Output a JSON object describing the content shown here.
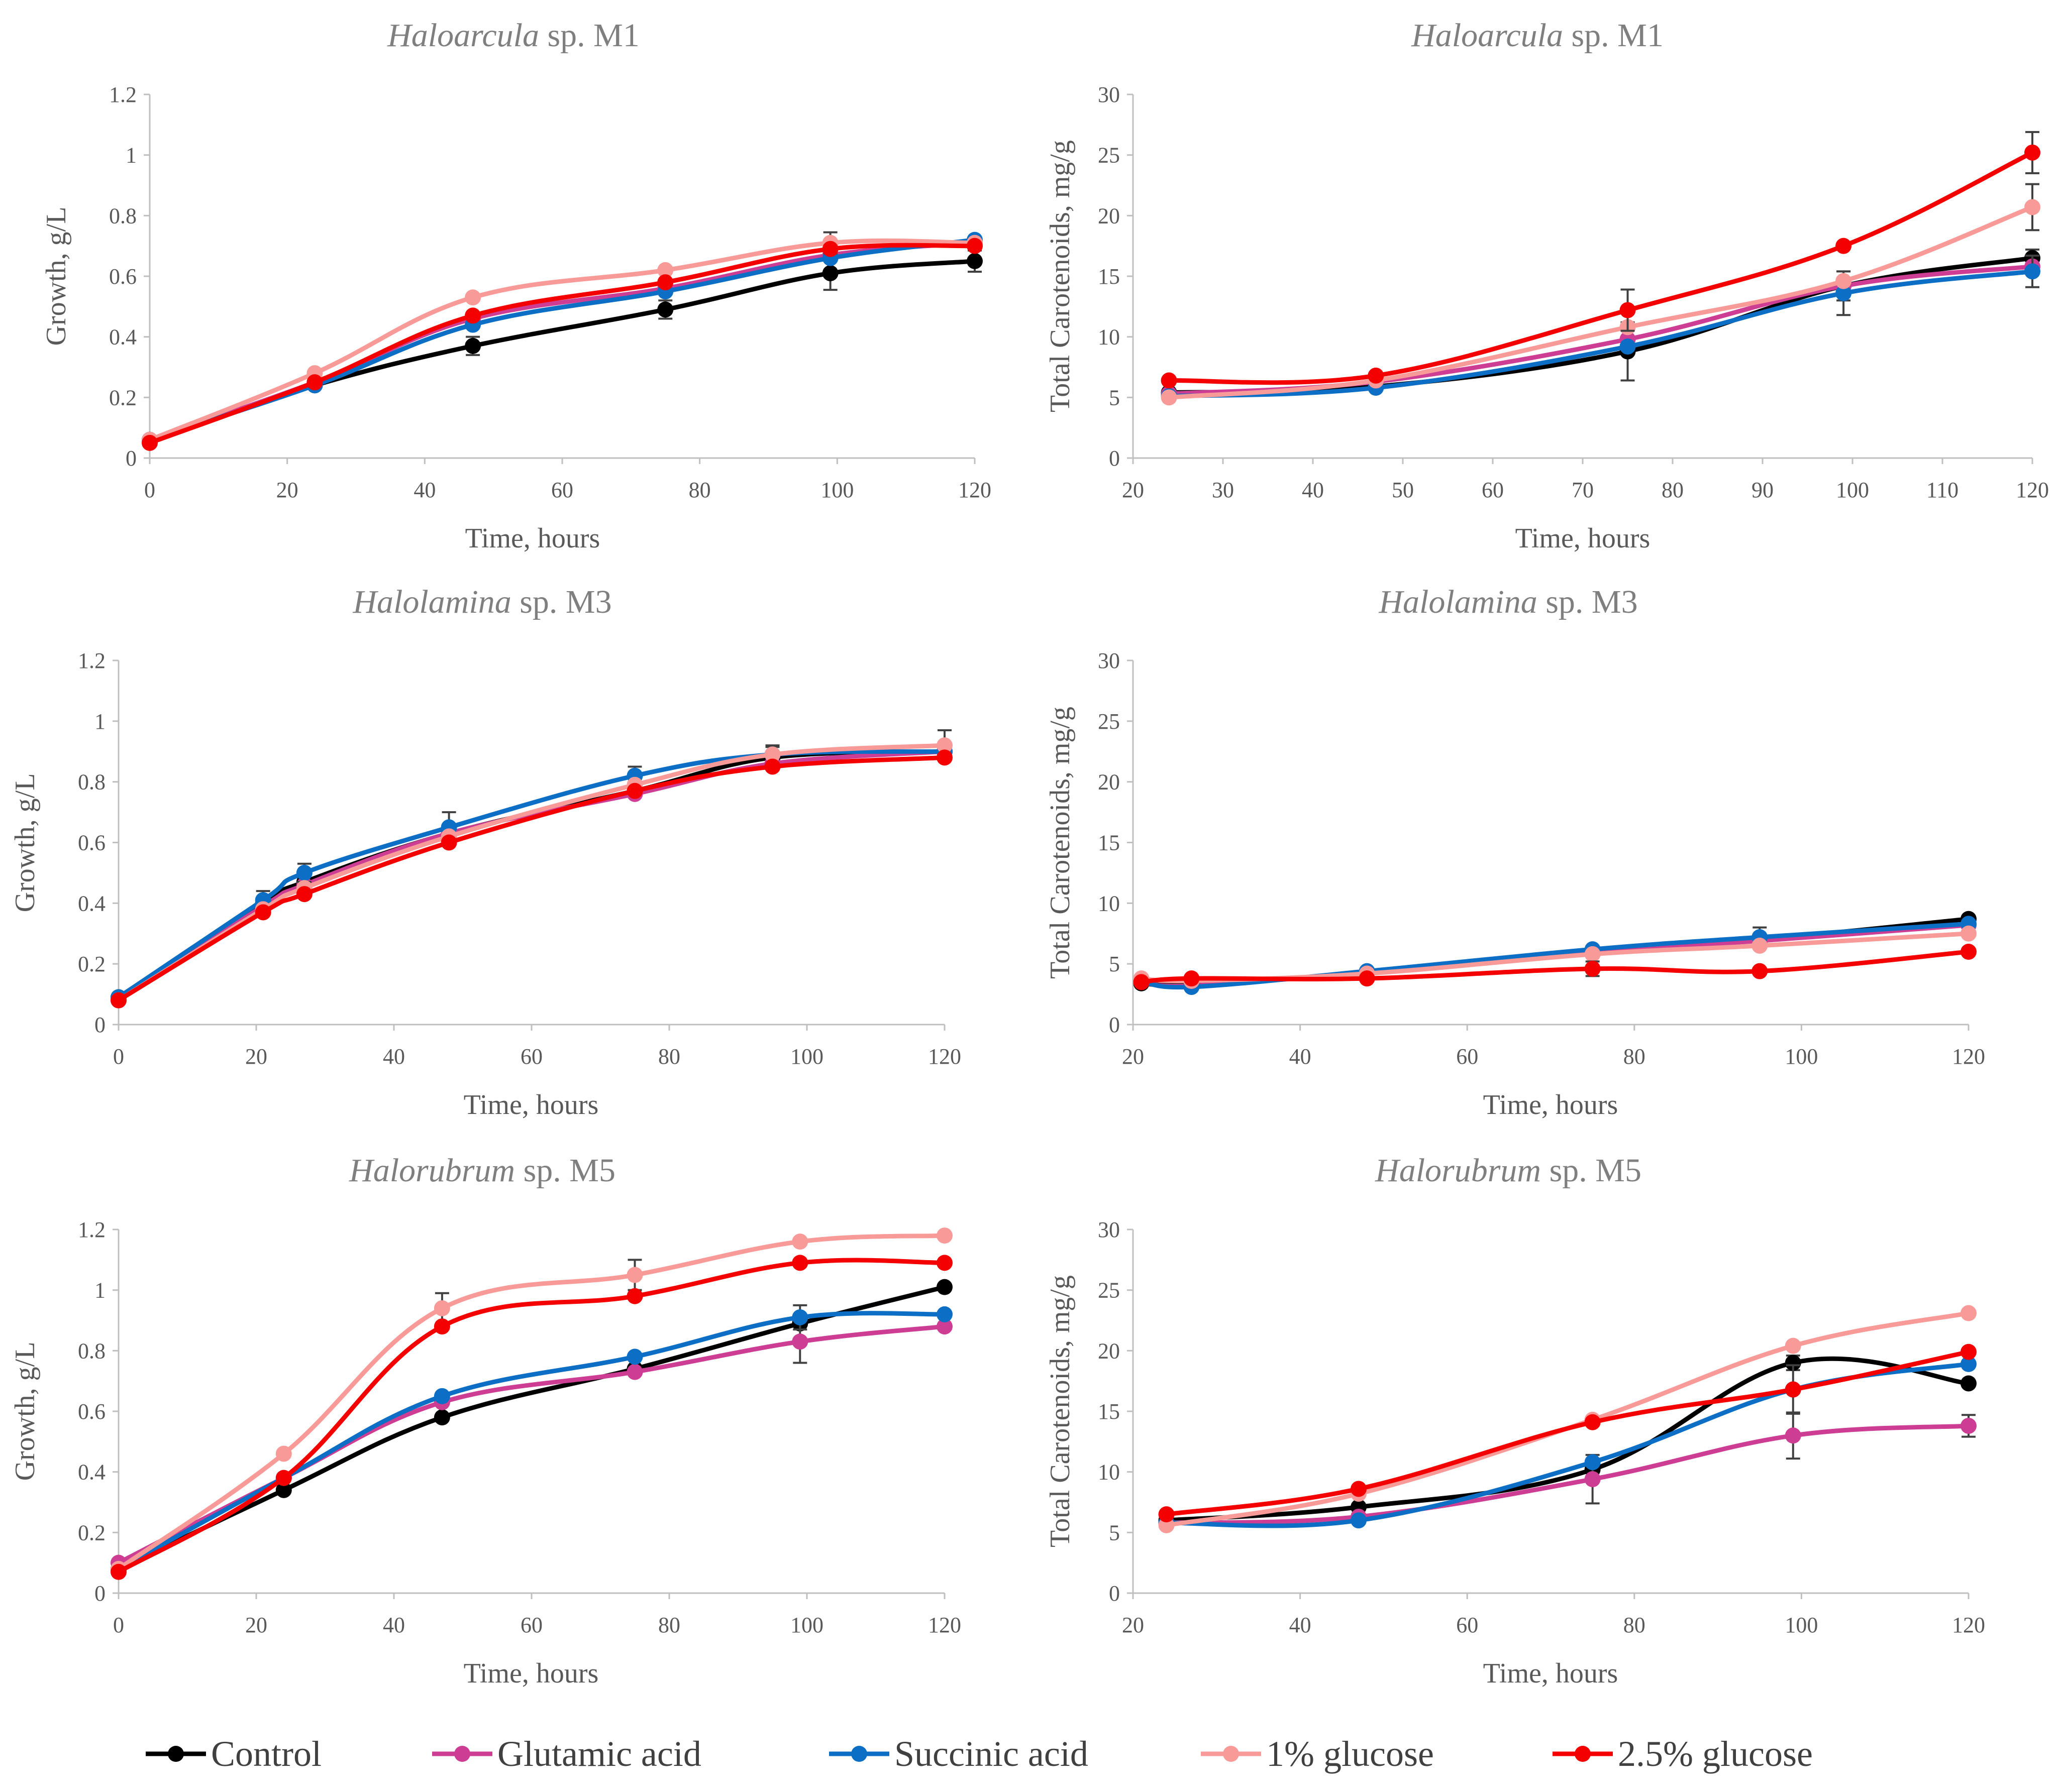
{
  "series_meta": [
    {
      "key": "control",
      "name": "Control",
      "color": "#000000"
    },
    {
      "key": "glutamic",
      "name": "Glutamic acid",
      "color": "#cc3d93"
    },
    {
      "key": "succinic",
      "name": "Succinic acid",
      "color": "#0c6ec4"
    },
    {
      "key": "glucose1",
      "name": "1% glucose",
      "color": "#f79a98"
    },
    {
      "key": "glucose25",
      "name": "2.5% glucose",
      "color": "#f40000"
    }
  ],
  "legend": {
    "items": [
      "Control",
      "Glutamic acid",
      "Succinic acid",
      "1% glucose",
      "2.5% glucose"
    ]
  },
  "chart_data": [
    {
      "id": "m1-growth",
      "type": "line",
      "title": {
        "italic": "Haloarcula",
        "rest": " sp. M1"
      },
      "xlabel": "Time, hours",
      "ylabel": "Growth, g/L",
      "xlim": [
        0,
        120
      ],
      "ylim": [
        0,
        1.2
      ],
      "xticks": [
        0,
        20,
        40,
        60,
        80,
        100,
        120
      ],
      "yticks": [
        0,
        0.2,
        0.4,
        0.6,
        0.8,
        1,
        1.2
      ],
      "ytick_labels": [
        "0",
        "0.2",
        "0.4",
        "0.6",
        "0.8",
        "1",
        "1.2"
      ],
      "series": [
        {
          "name": "Control",
          "x": [
            0,
            24,
            47,
            75,
            99,
            120
          ],
          "y": [
            0.06,
            0.24,
            0.37,
            0.49,
            0.61,
            0.65
          ],
          "err": [
            0,
            0,
            0.03,
            0.03,
            0.055,
            0.035
          ]
        },
        {
          "name": "Glutamic acid",
          "x": [
            0,
            24,
            47,
            75,
            99,
            120
          ],
          "y": [
            0.06,
            0.25,
            0.46,
            0.56,
            0.67,
            0.71
          ],
          "err": [
            0,
            0,
            0,
            0,
            0,
            0
          ]
        },
        {
          "name": "Succinic acid",
          "x": [
            0,
            24,
            47,
            75,
            99,
            120
          ],
          "y": [
            0.06,
            0.24,
            0.44,
            0.55,
            0.66,
            0.72
          ],
          "err": [
            0,
            0,
            0,
            0,
            0,
            0
          ]
        },
        {
          "name": "1% glucose",
          "x": [
            0,
            24,
            47,
            75,
            99,
            120
          ],
          "y": [
            0.06,
            0.28,
            0.53,
            0.62,
            0.71,
            0.71
          ],
          "err": [
            0,
            0,
            0,
            0,
            0.035,
            0
          ]
        },
        {
          "name": "2.5% glucose",
          "x": [
            0,
            24,
            47,
            75,
            99,
            120
          ],
          "y": [
            0.05,
            0.25,
            0.47,
            0.58,
            0.69,
            0.7
          ],
          "err": [
            0,
            0,
            0,
            0,
            0,
            0
          ]
        }
      ]
    },
    {
      "id": "m1-carot",
      "type": "line",
      "title": {
        "italic": "Haloarcula",
        "rest": " sp. M1"
      },
      "xlabel": "Time, hours",
      "ylabel": "Total Carotenoids, mg/g",
      "xlim": [
        20,
        120
      ],
      "ylim": [
        0,
        30
      ],
      "xticks": [
        20,
        30,
        40,
        50,
        60,
        70,
        80,
        90,
        100,
        110,
        120
      ],
      "yticks": [
        0,
        5,
        10,
        15,
        20,
        25,
        30
      ],
      "ytick_labels": [
        "0",
        "5",
        "10",
        "15",
        "20",
        "25",
        "30"
      ],
      "series": [
        {
          "name": "Control",
          "x": [
            24,
            47,
            75,
            99,
            120
          ],
          "y": [
            5.4,
            5.9,
            8.8,
            14.2,
            16.5
          ],
          "err": [
            0,
            0,
            2.4,
            1.2,
            0.7
          ]
        },
        {
          "name": "Glutamic acid",
          "x": [
            24,
            47,
            75,
            99,
            120
          ],
          "y": [
            5.3,
            6.3,
            9.8,
            14.2,
            15.8
          ],
          "err": [
            0,
            0,
            0,
            0,
            0
          ]
        },
        {
          "name": "Succinic acid",
          "x": [
            24,
            47,
            75,
            99,
            120
          ],
          "y": [
            5.1,
            5.8,
            9.2,
            13.6,
            15.4
          ],
          "err": [
            0,
            0,
            0,
            1.8,
            1.3
          ]
        },
        {
          "name": "1% glucose",
          "x": [
            24,
            47,
            75,
            99,
            120
          ],
          "y": [
            5.0,
            6.4,
            10.8,
            14.6,
            20.7
          ],
          "err": [
            0,
            0,
            0,
            0,
            1.9
          ]
        },
        {
          "name": "2.5% glucose",
          "x": [
            24,
            47,
            75,
            99,
            120
          ],
          "y": [
            6.4,
            6.8,
            12.2,
            17.5,
            25.2
          ],
          "err": [
            0,
            0,
            1.7,
            0,
            1.7
          ]
        }
      ]
    },
    {
      "id": "m3-growth",
      "type": "line",
      "title": {
        "italic": "Halolamina",
        "rest": " sp. M3"
      },
      "xlabel": "Time, hours",
      "ylabel": "Growth, g/L",
      "xlim": [
        0,
        120
      ],
      "ylim": [
        0,
        1.2
      ],
      "xticks": [
        0,
        20,
        40,
        60,
        80,
        100,
        120
      ],
      "yticks": [
        0,
        0.2,
        0.4,
        0.6,
        0.8,
        1,
        1.2
      ],
      "ytick_labels": [
        "0",
        "0.2",
        "0.4",
        "0.6",
        "0.8",
        "1",
        "1.2"
      ],
      "series": [
        {
          "name": "Control",
          "x": [
            0,
            21,
            27,
            48,
            75,
            95,
            120
          ],
          "y": [
            0.09,
            0.4,
            0.47,
            0.63,
            0.77,
            0.88,
            0.9
          ],
          "err": [
            0,
            0,
            0,
            0,
            0,
            0.035,
            0
          ]
        },
        {
          "name": "Glutamic acid",
          "x": [
            0,
            21,
            27,
            48,
            75,
            95,
            120
          ],
          "y": [
            0.08,
            0.39,
            0.46,
            0.63,
            0.76,
            0.86,
            0.9
          ],
          "err": [
            0,
            0,
            0,
            0,
            0,
            0,
            0
          ]
        },
        {
          "name": "Succinic acid",
          "x": [
            0,
            21,
            27,
            48,
            75,
            95,
            120
          ],
          "y": [
            0.09,
            0.41,
            0.5,
            0.65,
            0.82,
            0.89,
            0.9
          ],
          "err": [
            0,
            0.03,
            0.03,
            0.05,
            0.03,
            0.03,
            0
          ]
        },
        {
          "name": "1% glucose",
          "x": [
            0,
            21,
            27,
            48,
            75,
            95,
            120
          ],
          "y": [
            0.08,
            0.38,
            0.45,
            0.62,
            0.79,
            0.89,
            0.92
          ],
          "err": [
            0,
            0,
            0,
            0,
            0,
            0,
            0.05
          ]
        },
        {
          "name": "2.5% glucose",
          "x": [
            0,
            21,
            27,
            48,
            75,
            95,
            120
          ],
          "y": [
            0.08,
            0.37,
            0.43,
            0.6,
            0.77,
            0.85,
            0.88
          ],
          "err": [
            0,
            0,
            0,
            0,
            0,
            0,
            0
          ]
        }
      ]
    },
    {
      "id": "m3-carot",
      "type": "line",
      "title": {
        "italic": "Halolamina",
        "rest": " sp. M3"
      },
      "xlabel": "Time, hours",
      "ylabel": "Total Carotenoids, mg/g",
      "xlim": [
        20,
        120
      ],
      "ylim": [
        0,
        30
      ],
      "xticks": [
        20,
        40,
        60,
        80,
        100,
        120
      ],
      "yticks": [
        0,
        5,
        10,
        15,
        20,
        25,
        30
      ],
      "ytick_labels": [
        "0",
        "5",
        "10",
        "15",
        "20",
        "25",
        "30"
      ],
      "series": [
        {
          "name": "Control",
          "x": [
            21,
            27,
            48,
            75,
            95,
            120
          ],
          "y": [
            3.4,
            3.3,
            4.3,
            6.1,
            7.0,
            8.7
          ],
          "err": [
            0,
            0,
            0,
            0,
            0,
            0
          ]
        },
        {
          "name": "Glutamic acid",
          "x": [
            21,
            27,
            48,
            75,
            95,
            120
          ],
          "y": [
            3.5,
            3.2,
            4.3,
            6.0,
            6.9,
            8.2
          ],
          "err": [
            0,
            0,
            0,
            0,
            0,
            0
          ]
        },
        {
          "name": "Succinic acid",
          "x": [
            21,
            27,
            48,
            75,
            95,
            120
          ],
          "y": [
            3.6,
            3.1,
            4.4,
            6.2,
            7.2,
            8.3
          ],
          "err": [
            0,
            0,
            0,
            0,
            0.8,
            0
          ]
        },
        {
          "name": "1% glucose",
          "x": [
            21,
            27,
            48,
            75,
            95,
            120
          ],
          "y": [
            3.8,
            3.6,
            4.2,
            5.8,
            6.5,
            7.5
          ],
          "err": [
            0,
            0,
            0,
            0,
            0,
            0
          ]
        },
        {
          "name": "2.5% glucose",
          "x": [
            21,
            27,
            48,
            75,
            95,
            120
          ],
          "y": [
            3.5,
            3.8,
            3.8,
            4.6,
            4.4,
            6.0
          ],
          "err": [
            0,
            0,
            0,
            0.6,
            0,
            0
          ]
        }
      ]
    },
    {
      "id": "m5-growth",
      "type": "line",
      "title": {
        "italic": "Halorubrum",
        "rest": " sp. M5"
      },
      "xlabel": "Time, hours",
      "ylabel": "Growth, g/L",
      "xlim": [
        0,
        120
      ],
      "ylim": [
        0,
        1.2
      ],
      "xticks": [
        0,
        20,
        40,
        60,
        80,
        100,
        120
      ],
      "yticks": [
        0,
        0.2,
        0.4,
        0.6,
        0.8,
        1,
        1.2
      ],
      "ytick_labels": [
        "0",
        "0.2",
        "0.4",
        "0.6",
        "0.8",
        "1",
        "1.2"
      ],
      "series": [
        {
          "name": "Control",
          "x": [
            0,
            24,
            47,
            75,
            99,
            120
          ],
          "y": [
            0.08,
            0.34,
            0.58,
            0.74,
            0.89,
            1.01
          ],
          "err": [
            0,
            0,
            0,
            0,
            0,
            0
          ]
        },
        {
          "name": "Glutamic acid",
          "x": [
            0,
            24,
            47,
            75,
            99,
            120
          ],
          "y": [
            0.1,
            0.38,
            0.63,
            0.73,
            0.83,
            0.88
          ],
          "err": [
            0,
            0,
            0,
            0,
            0.07,
            0
          ]
        },
        {
          "name": "Succinic acid",
          "x": [
            0,
            24,
            47,
            75,
            99,
            120
          ],
          "y": [
            0.08,
            0.38,
            0.65,
            0.78,
            0.91,
            0.92
          ],
          "err": [
            0,
            0,
            0,
            0,
            0.04,
            0
          ]
        },
        {
          "name": "1% glucose",
          "x": [
            0,
            24,
            47,
            75,
            99,
            120
          ],
          "y": [
            0.08,
            0.46,
            0.94,
            1.05,
            1.16,
            1.18
          ],
          "err": [
            0,
            0,
            0.05,
            0.05,
            0,
            0
          ]
        },
        {
          "name": "2.5% glucose",
          "x": [
            0,
            24,
            47,
            75,
            99,
            120
          ],
          "y": [
            0.07,
            0.38,
            0.88,
            0.98,
            1.09,
            1.09
          ],
          "err": [
            0,
            0,
            0,
            0,
            0,
            0
          ]
        }
      ]
    },
    {
      "id": "m5-carot",
      "type": "line",
      "title": {
        "italic": "Halorubrum",
        "rest": " sp. M5"
      },
      "xlabel": "Time, hours",
      "ylabel": "Total Carotenoids, mg/g",
      "xlim": [
        20,
        120
      ],
      "ylim": [
        0,
        30
      ],
      "xticks": [
        20,
        40,
        60,
        80,
        100,
        120
      ],
      "yticks": [
        0,
        5,
        10,
        15,
        20,
        25,
        30
      ],
      "ytick_labels": [
        "0",
        "5",
        "10",
        "15",
        "20",
        "25",
        "30"
      ],
      "series": [
        {
          "name": "Control",
          "x": [
            24,
            47,
            75,
            99,
            120
          ],
          "y": [
            6.0,
            7.1,
            10.2,
            19.0,
            17.3
          ],
          "err": [
            0,
            0,
            0,
            0.6,
            0
          ]
        },
        {
          "name": "Glutamic acid",
          "x": [
            24,
            47,
            75,
            99,
            120
          ],
          "y": [
            5.8,
            6.3,
            9.4,
            13.0,
            13.8
          ],
          "err": [
            0,
            0,
            2.0,
            1.9,
            0.9
          ]
        },
        {
          "name": "Succinic acid",
          "x": [
            24,
            47,
            75,
            99,
            120
          ],
          "y": [
            5.8,
            6.0,
            10.8,
            16.8,
            18.9
          ],
          "err": [
            0,
            0,
            0,
            0,
            0
          ]
        },
        {
          "name": "1% glucose",
          "x": [
            24,
            47,
            75,
            99,
            120
          ],
          "y": [
            5.6,
            8.2,
            14.3,
            20.4,
            23.1
          ],
          "err": [
            0,
            0,
            0,
            0,
            0
          ]
        },
        {
          "name": "2.5% glucose",
          "x": [
            24,
            47,
            75,
            99,
            120
          ],
          "y": [
            6.5,
            8.6,
            14.1,
            16.8,
            19.9
          ],
          "err": [
            0,
            0,
            0,
            2.0,
            0
          ]
        }
      ]
    }
  ]
}
